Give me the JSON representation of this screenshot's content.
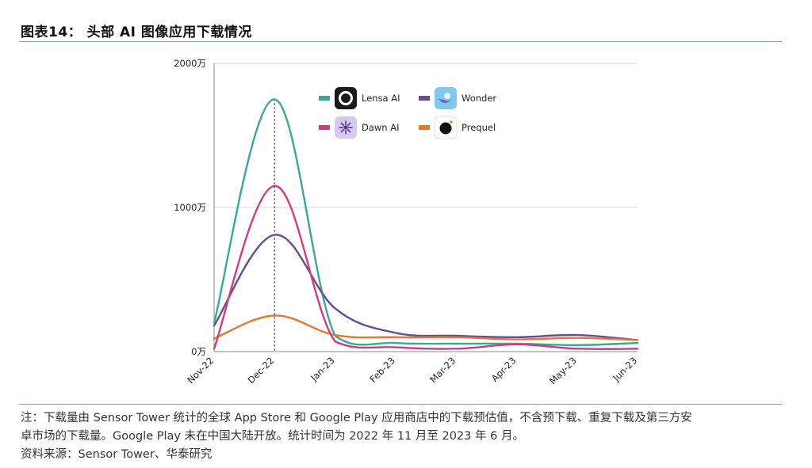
{
  "figure": {
    "title": "图表14： 头部 AI 图像应用下载情况"
  },
  "notes": {
    "line1": "注：下载量由 Sensor Tower 统计的全球 App Store 和 Google Play 应用商店中的下载预估值，不含预下载、重复下载及第三方安",
    "line2": "卓市场的下载量。Google Play 未在中国大陆开放。统计时间为 2022 年 11 月至 2023 年 6 月。",
    "line3": "资料来源：Sensor Tower、华泰研究"
  },
  "chart_data": {
    "type": "line",
    "x": [
      "Nov-22",
      "Dec-22",
      "Jan-23",
      "Feb-23",
      "Mar-23",
      "Apr-23",
      "May-23",
      "Jun-23"
    ],
    "yticks": [
      "0万",
      "1000万",
      "2000万"
    ],
    "ylim": [
      0,
      2000
    ],
    "grid": true,
    "legend_position": "top-center",
    "peak_marker_x": "Dec-22",
    "series": [
      {
        "name": "Lensa AI",
        "color": "#3aa79a",
        "icon": "lensa-app-icon",
        "values": [
          200,
          1750,
          110,
          60,
          55,
          55,
          45,
          60
        ]
      },
      {
        "name": "Dawn AI",
        "color": "#d23b7c",
        "icon": "dawn-app-icon",
        "values": [
          20,
          1150,
          70,
          30,
          20,
          50,
          20,
          20
        ]
      },
      {
        "name": "Wonder",
        "color": "#6b4a94",
        "icon": "wonder-app-icon",
        "values": [
          180,
          810,
          300,
          130,
          110,
          100,
          115,
          80
        ]
      },
      {
        "name": "Prequel",
        "color": "#e8762c",
        "icon": "prequel-app-icon",
        "values": [
          90,
          250,
          115,
          100,
          100,
          85,
          95,
          80
        ]
      }
    ]
  }
}
